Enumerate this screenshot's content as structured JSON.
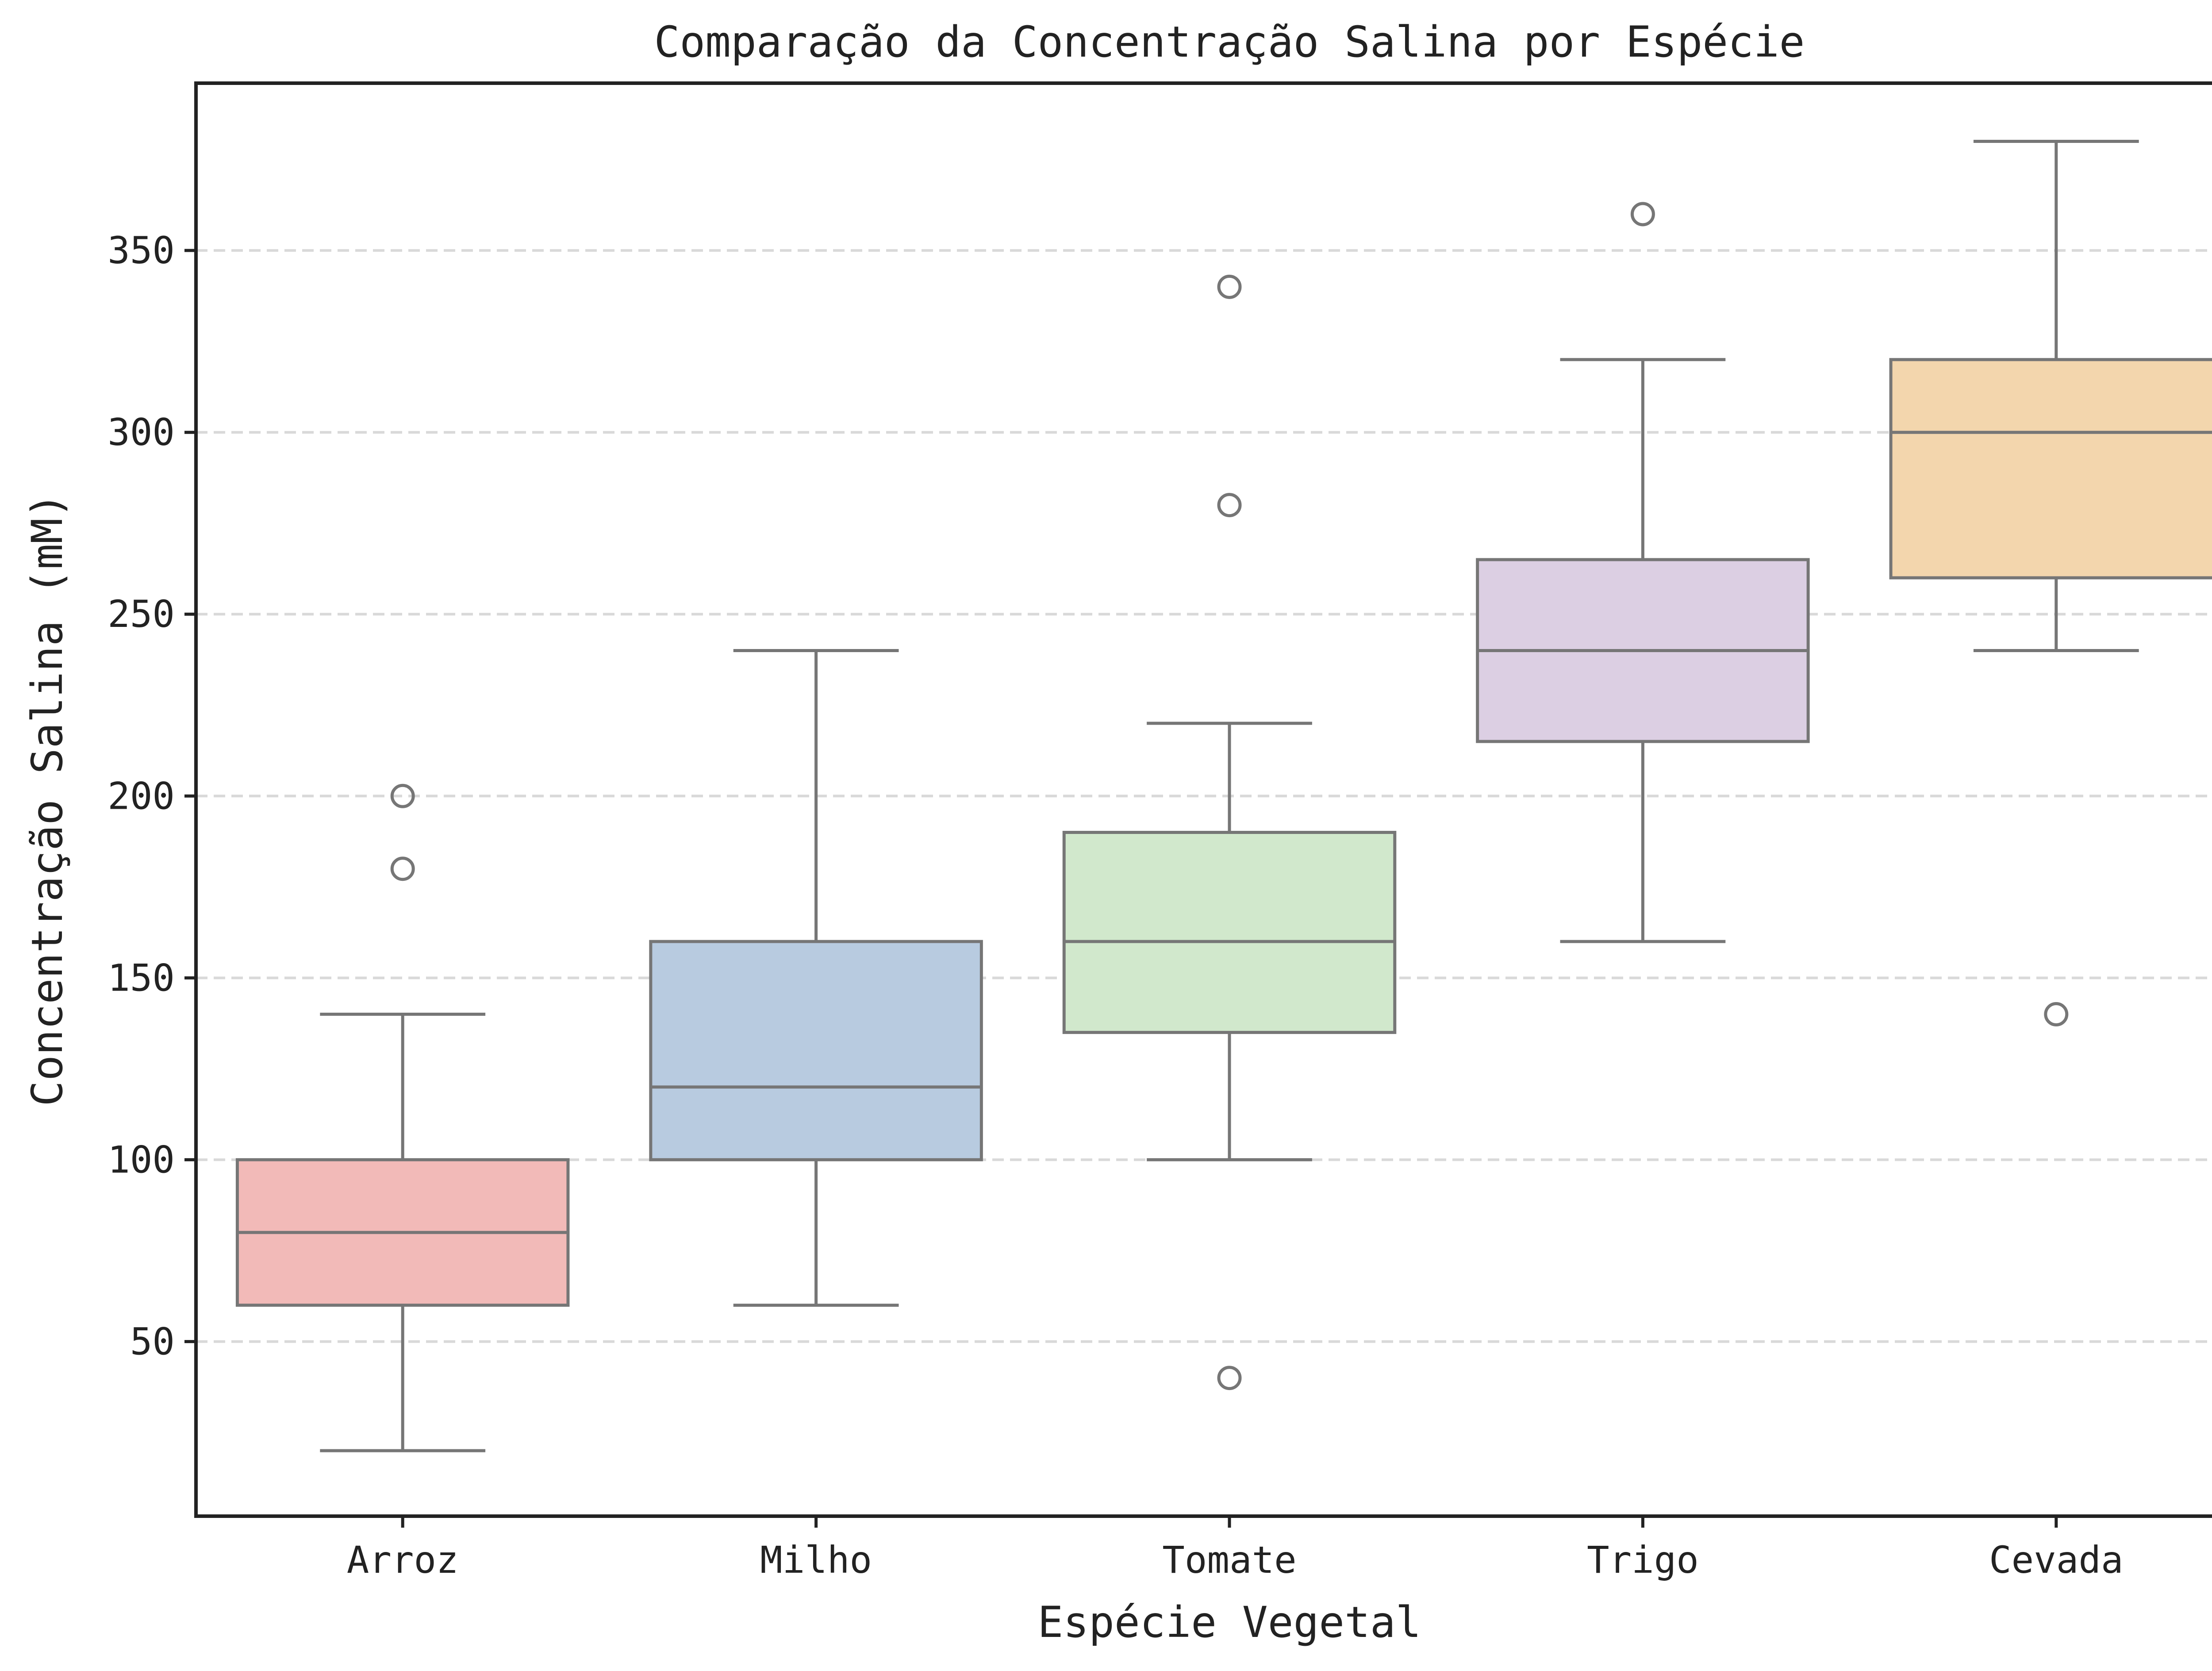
{
  "chart_data": {
    "type": "box",
    "title": "Comparação da Concentração Salina por Espécie",
    "xlabel": "Espécie Vegetal",
    "ylabel": "Concentração Salina (mM)",
    "ylim": [
      2,
      396
    ],
    "yticks": [
      50,
      100,
      150,
      200,
      250,
      300,
      350
    ],
    "grid": "horizontal dashed",
    "categories": [
      "Arroz",
      "Milho",
      "Tomate",
      "Trigo",
      "Cevada"
    ],
    "series": [
      {
        "name": "Arroz",
        "color": "#f2bab8",
        "whisker_low": 20,
        "q1": 60,
        "median": 80,
        "q3": 100,
        "whisker_high": 140,
        "outliers": [
          180,
          200
        ]
      },
      {
        "name": "Milho",
        "color": "#b8cbe0",
        "whisker_low": 60,
        "q1": 100,
        "median": 120,
        "q3": 160,
        "whisker_high": 240,
        "outliers": []
      },
      {
        "name": "Tomate",
        "color": "#d1e8cc",
        "whisker_low": 100,
        "q1": 135,
        "median": 160,
        "q3": 190,
        "whisker_high": 220,
        "outliers": [
          40,
          280,
          340
        ]
      },
      {
        "name": "Trigo",
        "color": "#dccfe3",
        "whisker_low": 160,
        "q1": 215,
        "median": 240,
        "q3": 265,
        "whisker_high": 320,
        "outliers": [
          360
        ]
      },
      {
        "name": "Cevada",
        "color": "#f3d6ad",
        "whisker_low": 240,
        "q1": 260,
        "median": 300,
        "q3": 320,
        "whisker_high": 380,
        "outliers": [
          140
        ]
      }
    ]
  }
}
